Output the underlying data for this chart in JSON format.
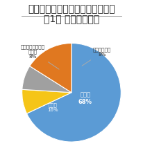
{
  "title": "アジャイル開発に関する実態調査",
  "subtitle": "図1： 取り組み状況",
  "slices": [
    68,
    8,
    8,
    16
  ],
  "slice_labels_inside": [
    "実施中\n68%",
    "",
    "",
    "検討中\n16%"
  ],
  "slice_labels_outside": [
    "",
    "実施予定なし\n8%",
    "以前行っていたが\n止めた\n8%",
    ""
  ],
  "colors": [
    "#5b9bd5",
    "#f5c518",
    "#a0a0a0",
    "#e07820"
  ],
  "startangle": 90,
  "background_color": "#ffffff",
  "title_fontsize": 7.0,
  "subtitle_fontsize": 6.0,
  "label_fontsize": 5.5
}
